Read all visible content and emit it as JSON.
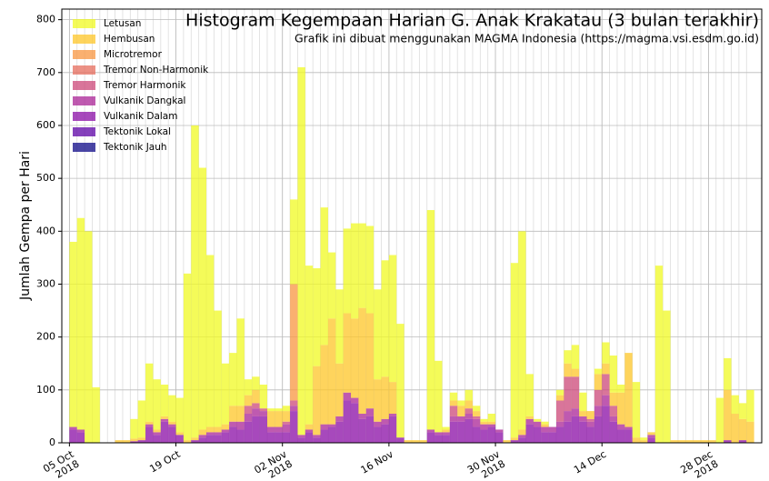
{
  "chart_data": {
    "type": "stacked_histogram",
    "title": "Histogram Kegempaan Harian G. Anak Krakatau (3 bulan terakhir)",
    "subtitle": "Grafik ini dibuat menggunakan MAGMA Indonesia (https://magma.vsi.esdm.go.id)",
    "y_label": "Jumlah Gempa per Hari",
    "x": [
      "2018-10-05",
      "2018-10-06",
      "2018-10-07",
      "2018-10-08",
      "2018-10-09",
      "2018-10-10",
      "2018-10-11",
      "2018-10-12",
      "2018-10-13",
      "2018-10-14",
      "2018-10-15",
      "2018-10-16",
      "2018-10-17",
      "2018-10-18",
      "2018-10-19",
      "2018-10-20",
      "2018-10-21",
      "2018-10-22",
      "2018-10-23",
      "2018-10-24",
      "2018-10-25",
      "2018-10-26",
      "2018-10-27",
      "2018-10-28",
      "2018-10-29",
      "2018-10-30",
      "2018-10-31",
      "2018-11-01",
      "2018-11-02",
      "2018-11-03",
      "2018-11-04",
      "2018-11-05",
      "2018-11-06",
      "2018-11-07",
      "2018-11-08",
      "2018-11-09",
      "2018-11-10",
      "2018-11-11",
      "2018-11-12",
      "2018-11-13",
      "2018-11-14",
      "2018-11-15",
      "2018-11-16",
      "2018-11-17",
      "2018-11-18",
      "2018-11-19",
      "2018-11-20",
      "2018-11-21",
      "2018-11-22",
      "2018-11-23",
      "2018-11-24",
      "2018-11-25",
      "2018-11-26",
      "2018-11-27",
      "2018-11-28",
      "2018-11-29",
      "2018-11-30",
      "2018-12-01",
      "2018-12-02",
      "2018-12-03",
      "2018-12-04",
      "2018-12-05",
      "2018-12-06",
      "2018-12-07",
      "2018-12-08",
      "2018-12-09",
      "2018-12-10",
      "2018-12-11",
      "2018-12-12",
      "2018-12-13",
      "2018-12-14",
      "2018-12-15",
      "2018-12-16",
      "2018-12-17",
      "2018-12-18",
      "2018-12-19",
      "2018-12-20",
      "2018-12-21",
      "2018-12-22",
      "2018-12-23",
      "2018-12-24",
      "2018-12-25",
      "2018-12-26",
      "2018-12-27",
      "2018-12-28",
      "2018-12-29",
      "2018-12-30",
      "2018-12-31",
      "2019-01-01",
      "2019-01-02"
    ],
    "series": [
      {
        "name": "Tektonik Jauh",
        "color": "#0d0887",
        "values": [
          0,
          0,
          0,
          0,
          0,
          0,
          0,
          0,
          0,
          0,
          0,
          0,
          0,
          0,
          0,
          0,
          0,
          0,
          0,
          0,
          0,
          0,
          0,
          0,
          0,
          0,
          0,
          0,
          0,
          0,
          0,
          0,
          0,
          0,
          0,
          0,
          0,
          0,
          0,
          0,
          0,
          0,
          0,
          0,
          0,
          0,
          0,
          0,
          0,
          0,
          0,
          0,
          0,
          0,
          0,
          0,
          0,
          0,
          0,
          0,
          0,
          0,
          0,
          0,
          0,
          0,
          0,
          0,
          0,
          0,
          0,
          0,
          0,
          0,
          0,
          0,
          0,
          0,
          0,
          0,
          0,
          0,
          0,
          0,
          0,
          0,
          0,
          0,
          0,
          0
        ]
      },
      {
        "name": "Tektonik Lokal",
        "color": "#5c01a6",
        "values": [
          0,
          0,
          0,
          0,
          0,
          0,
          0,
          0,
          0,
          0,
          0,
          0,
          0,
          0,
          0,
          0,
          0,
          0,
          0,
          0,
          0,
          0,
          0,
          0,
          0,
          0,
          0,
          0,
          0,
          0,
          0,
          0,
          0,
          0,
          0,
          0,
          0,
          0,
          0,
          0,
          0,
          0,
          0,
          0,
          0,
          0,
          0,
          0,
          0,
          0,
          0,
          0,
          0,
          0,
          0,
          0,
          0,
          0,
          0,
          0,
          0,
          0,
          0,
          0,
          0,
          0,
          0,
          0,
          0,
          0,
          0,
          0,
          0,
          0,
          0,
          0,
          0,
          0,
          0,
          0,
          0,
          0,
          0,
          0,
          0,
          0,
          0,
          0,
          0,
          0
        ]
      },
      {
        "name": "Vulkanik Dalam",
        "color": "#8a0ca6",
        "values": [
          25,
          20,
          0,
          0,
          0,
          0,
          0,
          0,
          3,
          5,
          30,
          15,
          40,
          30,
          15,
          0,
          5,
          10,
          15,
          15,
          20,
          30,
          25,
          40,
          50,
          50,
          20,
          20,
          20,
          60,
          10,
          20,
          10,
          25,
          30,
          40,
          80,
          75,
          45,
          50,
          30,
          35,
          50,
          10,
          0,
          0,
          0,
          20,
          15,
          15,
          40,
          40,
          45,
          30,
          25,
          30,
          20,
          0,
          5,
          10,
          35,
          30,
          20,
          20,
          30,
          40,
          50,
          40,
          30,
          50,
          70,
          40,
          25,
          25,
          0,
          0,
          10,
          0,
          0,
          0,
          0,
          0,
          0,
          0,
          0,
          0,
          5,
          0,
          5,
          0
        ]
      },
      {
        "name": "Vulkanik Dangkal",
        "color": "#aa2395",
        "values": [
          5,
          5,
          0,
          0,
          0,
          0,
          0,
          0,
          0,
          0,
          5,
          5,
          5,
          5,
          0,
          0,
          0,
          5,
          5,
          5,
          5,
          10,
          15,
          15,
          15,
          10,
          10,
          10,
          15,
          10,
          5,
          5,
          5,
          10,
          5,
          10,
          15,
          10,
          10,
          15,
          10,
          10,
          5,
          0,
          0,
          0,
          0,
          5,
          5,
          5,
          10,
          10,
          10,
          15,
          10,
          5,
          5,
          0,
          0,
          5,
          10,
          10,
          10,
          10,
          10,
          20,
          15,
          10,
          10,
          20,
          20,
          10,
          10,
          5,
          0,
          0,
          5,
          0,
          0,
          0,
          0,
          0,
          0,
          0,
          0,
          0,
          0,
          0,
          0,
          0
        ]
      },
      {
        "name": "Tremor Harmonik",
        "color": "#cc4778",
        "values": [
          0,
          0,
          0,
          0,
          0,
          0,
          0,
          0,
          0,
          0,
          0,
          0,
          0,
          0,
          0,
          0,
          0,
          0,
          0,
          0,
          0,
          0,
          0,
          15,
          10,
          5,
          0,
          0,
          5,
          10,
          0,
          0,
          0,
          0,
          0,
          0,
          0,
          0,
          0,
          0,
          0,
          0,
          0,
          0,
          0,
          0,
          0,
          0,
          0,
          0,
          20,
          0,
          10,
          5,
          0,
          0,
          0,
          0,
          0,
          0,
          0,
          0,
          0,
          0,
          40,
          65,
          60,
          0,
          5,
          30,
          40,
          20,
          0,
          0,
          0,
          0,
          0,
          0,
          0,
          0,
          0,
          0,
          0,
          0,
          0,
          0,
          0,
          0,
          0,
          0
        ]
      },
      {
        "name": "Tremor Non-Harmonik",
        "color": "#e66c5c",
        "values": [
          0,
          0,
          0,
          0,
          0,
          0,
          0,
          0,
          0,
          0,
          0,
          0,
          0,
          0,
          0,
          0,
          0,
          0,
          0,
          0,
          0,
          0,
          0,
          0,
          0,
          0,
          0,
          0,
          0,
          0,
          0,
          0,
          0,
          0,
          0,
          0,
          0,
          0,
          0,
          0,
          0,
          0,
          0,
          0,
          0,
          0,
          0,
          0,
          0,
          0,
          0,
          0,
          0,
          0,
          0,
          0,
          0,
          0,
          0,
          0,
          0,
          0,
          0,
          0,
          0,
          0,
          0,
          0,
          0,
          0,
          0,
          0,
          0,
          0,
          0,
          0,
          0,
          0,
          0,
          0,
          0,
          0,
          0,
          0,
          0,
          0,
          0,
          0,
          0,
          0
        ]
      },
      {
        "name": "Microtremor",
        "color": "#f89540",
        "values": [
          0,
          0,
          0,
          0,
          0,
          0,
          0,
          0,
          0,
          0,
          0,
          0,
          0,
          0,
          0,
          0,
          0,
          0,
          0,
          0,
          0,
          0,
          0,
          0,
          0,
          0,
          0,
          0,
          0,
          220,
          0,
          0,
          0,
          0,
          0,
          0,
          0,
          0,
          0,
          0,
          0,
          0,
          0,
          0,
          0,
          0,
          0,
          0,
          0,
          0,
          0,
          0,
          0,
          0,
          0,
          0,
          0,
          0,
          0,
          0,
          0,
          0,
          0,
          0,
          0,
          0,
          0,
          0,
          0,
          0,
          0,
          0,
          0,
          0,
          0,
          0,
          0,
          0,
          0,
          0,
          0,
          0,
          0,
          0,
          0,
          0,
          0,
          0,
          0,
          0
        ]
      },
      {
        "name": "Hembusan",
        "color": "#fdc527",
        "values": [
          0,
          0,
          0,
          0,
          0,
          0,
          5,
          5,
          5,
          5,
          5,
          5,
          5,
          5,
          5,
          5,
          5,
          10,
          10,
          10,
          10,
          30,
          30,
          20,
          25,
          0,
          30,
          30,
          20,
          0,
          0,
          10,
          130,
          150,
          200,
          100,
          150,
          150,
          200,
          180,
          80,
          80,
          60,
          0,
          5,
          5,
          5,
          0,
          0,
          5,
          10,
          20,
          15,
          10,
          5,
          5,
          0,
          5,
          5,
          10,
          5,
          0,
          5,
          0,
          10,
          25,
          15,
          10,
          15,
          30,
          20,
          25,
          60,
          140,
          10,
          5,
          5,
          0,
          0,
          5,
          5,
          5,
          5,
          5,
          5,
          0,
          95,
          55,
          40,
          40
        ]
      },
      {
        "name": "Letusan",
        "color": "#f0f921",
        "values": [
          350,
          400,
          400,
          105,
          0,
          0,
          0,
          0,
          37,
          70,
          110,
          95,
          60,
          50,
          65,
          315,
          590,
          495,
          325,
          220,
          115,
          100,
          165,
          30,
          25,
          45,
          5,
          5,
          10,
          160,
          695,
          300,
          185,
          260,
          125,
          140,
          160,
          180,
          160,
          165,
          170,
          220,
          240,
          215,
          0,
          0,
          0,
          415,
          135,
          5,
          15,
          10,
          20,
          10,
          5,
          15,
          0,
          0,
          330,
          375,
          80,
          5,
          5,
          0,
          10,
          25,
          45,
          35,
          0,
          10,
          40,
          70,
          15,
          0,
          105,
          5,
          0,
          335,
          250,
          0,
          0,
          0,
          0,
          0,
          0,
          85,
          60,
          35,
          30,
          60
        ]
      }
    ],
    "xlim": [
      "2018-10-04",
      "2019-01-04"
    ],
    "xticks": [
      {
        "value": "2018-10-05",
        "label": "05 Oct\n2018"
      },
      {
        "value": "2018-10-19",
        "label": "19 Oct"
      },
      {
        "value": "2018-11-02",
        "label": "02 Nov\n2018"
      },
      {
        "value": "2018-11-16",
        "label": "16 Nov"
      },
      {
        "value": "2018-11-30",
        "label": "30 Nov\n2018"
      },
      {
        "value": "2018-12-14",
        "label": "14 Dec"
      },
      {
        "value": "2018-12-28",
        "label": "28 Dec\n2018"
      }
    ],
    "ylim": [
      0,
      820
    ],
    "yticks": [
      0,
      100,
      200,
      300,
      400,
      500,
      600,
      700,
      800
    ],
    "grid": true,
    "legend": "upper left"
  }
}
